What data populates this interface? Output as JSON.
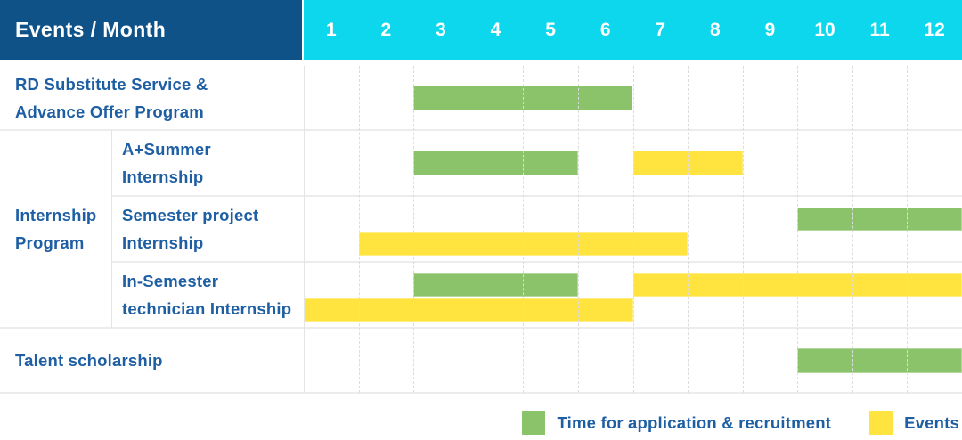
{
  "header": {
    "title": "Events / Month",
    "months": [
      "1",
      "2",
      "3",
      "4",
      "5",
      "6",
      "7",
      "8",
      "9",
      "10",
      "11",
      "12"
    ]
  },
  "legend": {
    "items": [
      {
        "series": "application",
        "label": "Time for application & recruitment",
        "color": "#8ac36a"
      },
      {
        "series": "events",
        "label": "Events",
        "color": "#ffe440"
      }
    ]
  },
  "colors": {
    "header_navy": "#0e5288",
    "header_cyan": "#0cd7ec",
    "bar_green": "#8ac36a",
    "bar_yellow": "#ffe440",
    "label_blue": "#1e5fa4"
  },
  "chart_data": {
    "type": "gantt",
    "title": "Events / Month",
    "x_unit": "month",
    "x_range": [
      1,
      12
    ],
    "grid": true,
    "legend_position": "bottom-right",
    "series": [
      {
        "name": "Time for application & recruitment",
        "key": "application",
        "color": "#8ac36a"
      },
      {
        "name": "Events",
        "key": "events",
        "color": "#ffe440"
      }
    ],
    "rows": [
      {
        "group": "",
        "label": "RD Substitute Service & Advance Offer Program",
        "label_lines": [
          "RD Substitute Service &",
          "Advance Offer Program"
        ],
        "bars": [
          {
            "series": "application",
            "start_month": 3,
            "end_month": 6,
            "lane": "middle"
          }
        ]
      },
      {
        "group": "Internship Program",
        "label": "A+Summer Internship",
        "label_lines": [
          "A+Summer",
          "Internship"
        ],
        "bars": [
          {
            "series": "application",
            "start_month": 3,
            "end_month": 5,
            "lane": "middle"
          },
          {
            "series": "events",
            "start_month": 7,
            "end_month": 8,
            "lane": "middle"
          }
        ]
      },
      {
        "group": "Internship Program",
        "label": "Semester project Internship",
        "label_lines": [
          "Semester project",
          "Internship"
        ],
        "bars": [
          {
            "series": "application",
            "start_month": 10,
            "end_month": 12,
            "lane": "top"
          },
          {
            "series": "events",
            "start_month": 2,
            "end_month": 7,
            "lane": "bottom"
          }
        ]
      },
      {
        "group": "Internship Program",
        "label": "In-Semester technician Internship",
        "label_lines": [
          "In-Semester",
          "technician Internship"
        ],
        "bars": [
          {
            "series": "application",
            "start_month": 3,
            "end_month": 5,
            "lane": "top"
          },
          {
            "series": "events",
            "start_month": 7,
            "end_month": 12,
            "lane": "top"
          },
          {
            "series": "events",
            "start_month": 1,
            "end_month": 6,
            "lane": "bottom"
          }
        ]
      },
      {
        "group": "",
        "label": "Talent scholarship",
        "label_lines": [
          "Talent scholarship"
        ],
        "bars": [
          {
            "series": "application",
            "start_month": 10,
            "end_month": 12,
            "lane": "middle"
          }
        ]
      }
    ],
    "group_label": "Internship Program"
  }
}
